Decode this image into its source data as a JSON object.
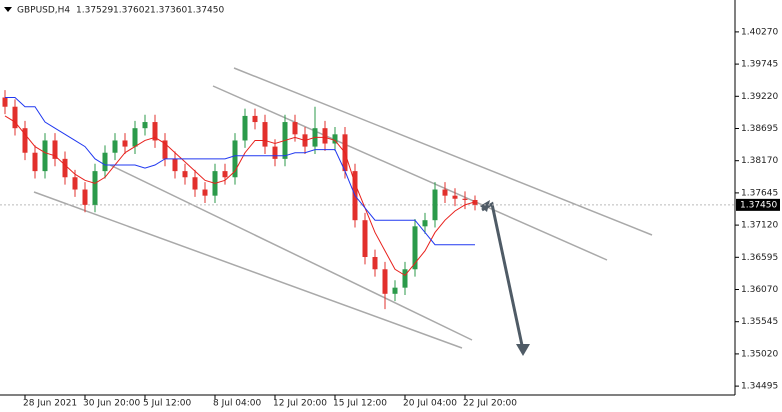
{
  "chart_data": {
    "type": "candlestick",
    "title": "GBPUSD,H4",
    "ohlc_labels": [
      "1.37529",
      "1.37602",
      "1.37360",
      "1.37450"
    ],
    "categories": [
      null,
      null,
      "28 Jun 2021",
      null,
      null,
      null,
      null,
      null,
      "30 Jun 20:00",
      null,
      null,
      null,
      null,
      null,
      "5 Jul 12:00",
      null,
      null,
      null,
      null,
      null,
      null,
      "8 Jul 04:00",
      null,
      null,
      null,
      null,
      null,
      "12 Jul 20:00",
      null,
      null,
      null,
      null,
      null,
      "15 Jul 12:00",
      null,
      null,
      null,
      null,
      null,
      null,
      "20 Jul 04:00",
      null,
      null,
      null,
      null,
      null,
      "22 Jul 20:00",
      null
    ],
    "open": [
      1.392,
      1.3905,
      1.387,
      1.383,
      1.38,
      1.385,
      1.382,
      1.379,
      1.377,
      1.3745,
      1.38,
      1.383,
      1.385,
      1.384,
      1.387,
      1.388,
      1.385,
      1.382,
      1.38,
      1.379,
      1.377,
      1.376,
      1.38,
      1.379,
      1.385,
      1.389,
      1.388,
      1.384,
      1.382,
      1.388,
      1.386,
      1.384,
      1.387,
      1.3845,
      1.386,
      1.38,
      1.372,
      1.366,
      1.364,
      1.36,
      1.361,
      1.364,
      1.371,
      1.372,
      1.377,
      1.376,
      1.3755,
      1.37529
    ],
    "high": [
      1.3932,
      1.3917,
      1.3882,
      1.3842,
      1.3862,
      1.3862,
      1.3832,
      1.3802,
      1.3782,
      1.3812,
      1.3842,
      1.3862,
      1.3862,
      1.3882,
      1.3892,
      1.3892,
      1.3862,
      1.3832,
      1.3812,
      1.3802,
      1.3782,
      1.3812,
      1.3812,
      1.3862,
      1.3902,
      1.3902,
      1.3892,
      1.3852,
      1.3892,
      1.3892,
      1.3872,
      1.3905,
      1.3882,
      1.3872,
      1.3872,
      1.3812,
      1.3732,
      1.3672,
      1.3652,
      1.3622,
      1.3652,
      1.3722,
      1.3732,
      1.3782,
      1.3782,
      1.3772,
      1.3767,
      1.37602
    ],
    "low": [
      1.3893,
      1.3858,
      1.3818,
      1.3788,
      1.3788,
      1.3808,
      1.3778,
      1.3758,
      1.3733,
      1.3733,
      1.3788,
      1.3818,
      1.3828,
      1.3828,
      1.3858,
      1.3838,
      1.3808,
      1.3788,
      1.3778,
      1.3758,
      1.3748,
      1.3748,
      1.3778,
      1.3778,
      1.3838,
      1.3868,
      1.3828,
      1.3808,
      1.3808,
      1.3848,
      1.3828,
      1.3828,
      1.3833,
      1.3833,
      1.3788,
      1.3708,
      1.3648,
      1.3628,
      1.3575,
      1.3588,
      1.3598,
      1.3628,
      1.3698,
      1.3708,
      1.3748,
      1.3743,
      1.3738,
      1.3736
    ],
    "close": [
      1.3905,
      1.387,
      1.383,
      1.38,
      1.385,
      1.382,
      1.379,
      1.377,
      1.3745,
      1.38,
      1.383,
      1.385,
      1.384,
      1.387,
      1.388,
      1.385,
      1.382,
      1.38,
      1.379,
      1.377,
      1.376,
      1.38,
      1.379,
      1.385,
      1.389,
      1.388,
      1.384,
      1.382,
      1.388,
      1.386,
      1.384,
      1.387,
      1.3845,
      1.386,
      1.38,
      1.372,
      1.366,
      1.364,
      1.36,
      1.361,
      1.364,
      1.371,
      1.372,
      1.377,
      1.376,
      1.3755,
      1.3753,
      1.3745
    ],
    "up_color": "#2b9a4a",
    "down_color": "#e2302c",
    "series": [
      {
        "color": "#e8211d",
        "values": [
          1.389,
          1.388,
          1.386,
          1.384,
          1.383,
          1.3825,
          1.381,
          1.3795,
          1.3785,
          1.378,
          1.379,
          1.381,
          1.383,
          1.384,
          1.385,
          1.3855,
          1.3845,
          1.383,
          1.3815,
          1.38,
          1.3785,
          1.378,
          1.3785,
          1.38,
          1.383,
          1.385,
          1.385,
          1.3845,
          1.385,
          1.3855,
          1.385,
          1.3855,
          1.3855,
          1.385,
          1.383,
          1.378,
          1.374,
          1.37,
          1.367,
          1.364,
          1.363,
          1.365,
          1.367,
          1.37,
          1.372,
          1.3735,
          1.3745,
          1.375
        ]
      },
      {
        "color": "#2038f0",
        "values": [
          1.392,
          1.392,
          1.3905,
          1.3905,
          1.388,
          1.387,
          1.386,
          1.385,
          1.384,
          1.382,
          1.381,
          1.381,
          1.381,
          1.381,
          1.3805,
          1.381,
          1.382,
          1.382,
          1.382,
          1.382,
          1.382,
          1.382,
          1.382,
          1.3825,
          1.3825,
          1.3825,
          1.3825,
          1.3825,
          1.3825,
          1.383,
          1.383,
          1.3835,
          1.3835,
          1.3835,
          1.38,
          1.376,
          1.374,
          1.372,
          1.372,
          1.372,
          1.372,
          1.372,
          1.37,
          1.368,
          1.368,
          1.368,
          1.368,
          1.368
        ]
      }
    ],
    "last_price": {
      "value": 1.3745,
      "label": "1.37450"
    },
    "ylim": [
      1.3435,
      1.4079
    ],
    "yticks": [
      {
        "value": 1.4027,
        "label": "1.40270"
      },
      {
        "value": 1.39745,
        "label": "1.39745"
      },
      {
        "value": 1.3922,
        "label": "1.39220"
      },
      {
        "value": 1.38695,
        "label": "1.38695"
      },
      {
        "value": 1.3817,
        "label": "1.38170"
      },
      {
        "value": 1.37645,
        "label": "1.37645"
      },
      {
        "value": 1.3712,
        "label": "1.37120"
      },
      {
        "value": 1.36595,
        "label": "1.36595"
      },
      {
        "value": 1.3607,
        "label": "1.36070"
      },
      {
        "value": 1.35545,
        "label": "1.35545"
      },
      {
        "value": 1.3502,
        "label": "1.35020"
      },
      {
        "value": 1.34495,
        "label": "1.34495"
      }
    ]
  }
}
